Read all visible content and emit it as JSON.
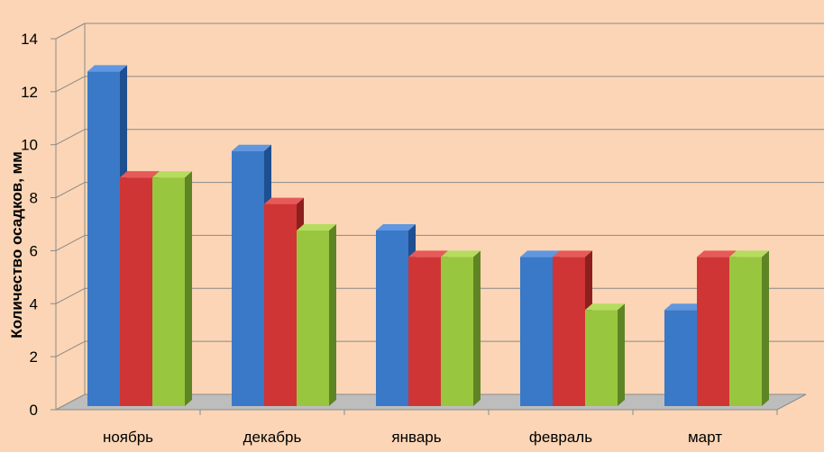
{
  "chart_data": {
    "type": "bar",
    "title": "",
    "xlabel": "",
    "ylabel": "Количество осадков, мм",
    "categories": [
      "ноябрь",
      "декабрь",
      "январь",
      "февраль",
      "март"
    ],
    "series": [
      {
        "color": "#3a78c8",
        "side": "#1f4f8f",
        "top": "#5f97e0",
        "values": [
          13,
          10,
          7,
          6,
          4
        ]
      },
      {
        "color": "#cf3535",
        "side": "#8e1f1f",
        "top": "#e65a5a",
        "values": [
          9,
          8,
          6,
          6,
          6
        ]
      },
      {
        "color": "#99c63f",
        "side": "#5f8423",
        "top": "#b5dc5f",
        "values": [
          9,
          7,
          6,
          4,
          6
        ]
      }
    ],
    "ylim": [
      0,
      14
    ],
    "yticks": [
      "0",
      "2",
      "4",
      "6",
      "8",
      "10",
      "12",
      "14"
    ],
    "grid": true,
    "legend": "none",
    "style": "3d-clustered-column"
  }
}
